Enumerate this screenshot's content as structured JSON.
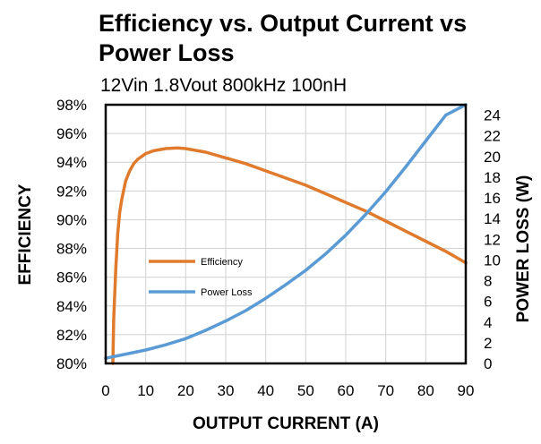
{
  "chart_data": {
    "type": "line",
    "title": "Efficiency vs. Output Current vs Power Loss",
    "subtitle": "12Vin 1.8Vout 800kHz 100nH",
    "xlabel": "OUTPUT CURRENT (A)",
    "ylabel_left": "EFFICIENCY",
    "ylabel_right": "POWER LOSS (W)",
    "xlim": [
      0,
      90
    ],
    "ylim_left": [
      80,
      98
    ],
    "ylim_right": [
      0,
      25
    ],
    "x_ticks": [
      "0",
      "10",
      "20",
      "30",
      "40",
      "50",
      "60",
      "70",
      "80",
      "90"
    ],
    "y_left_ticks": [
      "80%",
      "82%",
      "84%",
      "86%",
      "88%",
      "90%",
      "92%",
      "94%",
      "96%",
      "98%"
    ],
    "y_right_ticks": [
      "0",
      "2",
      "4",
      "6",
      "8",
      "10",
      "12",
      "14",
      "16",
      "18",
      "20",
      "22",
      "24"
    ],
    "series": [
      {
        "name": "Efficiency",
        "axis": "left",
        "color": "#E07B2E",
        "x": [
          1.8,
          2.0,
          2.5,
          3,
          3.5,
          4,
          5,
          6,
          7,
          8,
          10,
          12,
          15,
          18,
          20,
          25,
          30,
          35,
          40,
          45,
          50,
          55,
          60,
          65,
          70,
          75,
          80,
          85,
          90
        ],
        "y": [
          80.0,
          83.0,
          86.5,
          89.0,
          90.5,
          91.4,
          92.7,
          93.4,
          93.9,
          94.2,
          94.6,
          94.8,
          94.95,
          95.0,
          94.95,
          94.7,
          94.3,
          93.9,
          93.4,
          92.9,
          92.4,
          91.8,
          91.2,
          90.6,
          89.9,
          89.2,
          88.5,
          87.8,
          87.0
        ]
      },
      {
        "name": "Power Loss",
        "axis": "right",
        "color": "#5B9BD5",
        "x": [
          0,
          5,
          10,
          15,
          20,
          25,
          30,
          35,
          40,
          45,
          50,
          55,
          60,
          65,
          70,
          75,
          80,
          85,
          90
        ],
        "y": [
          0.5,
          0.9,
          1.3,
          1.8,
          2.4,
          3.2,
          4.1,
          5.1,
          6.3,
          7.6,
          9.0,
          10.6,
          12.4,
          14.4,
          16.6,
          19.0,
          21.5,
          24.0,
          25.0
        ]
      }
    ],
    "legend": [
      "Efficiency",
      "Power Loss"
    ]
  }
}
